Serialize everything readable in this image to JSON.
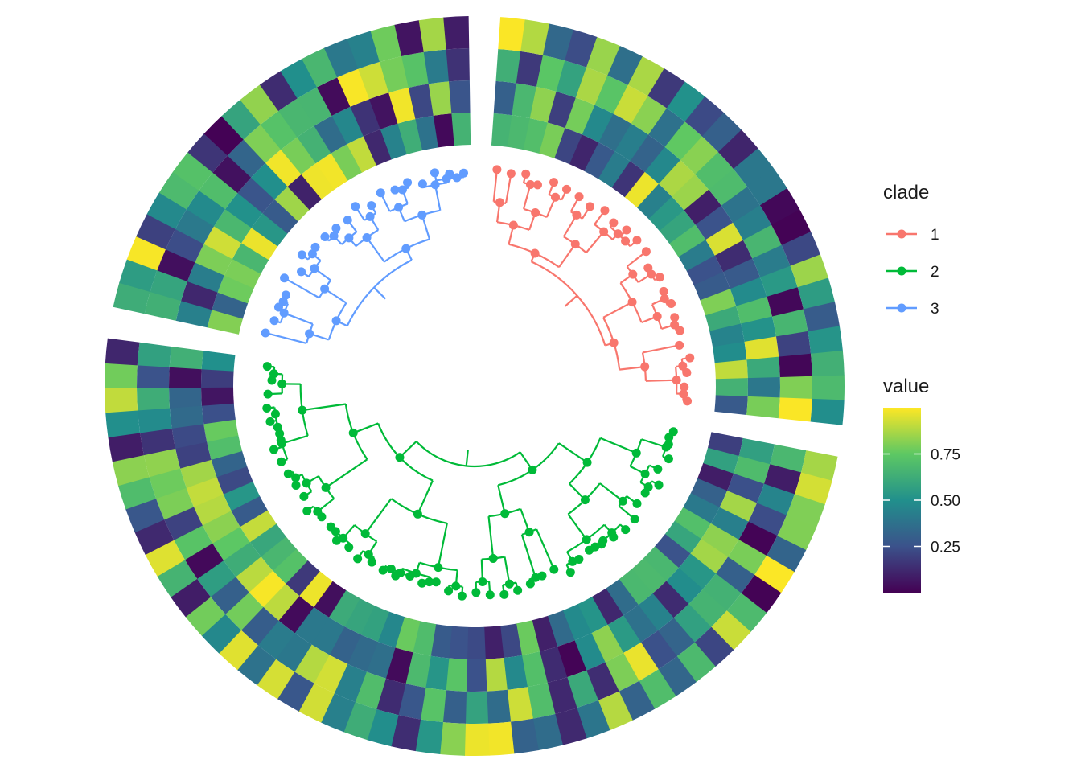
{
  "chart_data": {
    "type": "heatmap",
    "subtype": "circular-dendrogram-with-ring-heatmap",
    "title": "",
    "rings": 4,
    "sectors": [
      {
        "clade": "1",
        "tips": 24
      },
      {
        "clade": "2",
        "tips": 46
      },
      {
        "clade": "3",
        "tips": 20
      }
    ],
    "legend_clade": {
      "title": "clade",
      "items": [
        {
          "label": "1",
          "color": "#F8766D"
        },
        {
          "label": "2",
          "color": "#00BA38"
        },
        {
          "label": "3",
          "color": "#619CFF"
        }
      ]
    },
    "legend_value": {
      "title": "value",
      "ticks": [
        {
          "value": 0.25,
          "label": "0.25"
        },
        {
          "value": 0.5,
          "label": "0.50"
        },
        {
          "value": 0.75,
          "label": "0.75"
        }
      ],
      "range": [
        0.0,
        1.0
      ],
      "palette": [
        "#440154",
        "#3B528B",
        "#21908C",
        "#5DC863",
        "#FDE725"
      ]
    },
    "legend_placement": "right",
    "grid": false,
    "clade_colors": {
      "1": "#F8766D",
      "2": "#00BA38",
      "3": "#619CFF"
    }
  }
}
